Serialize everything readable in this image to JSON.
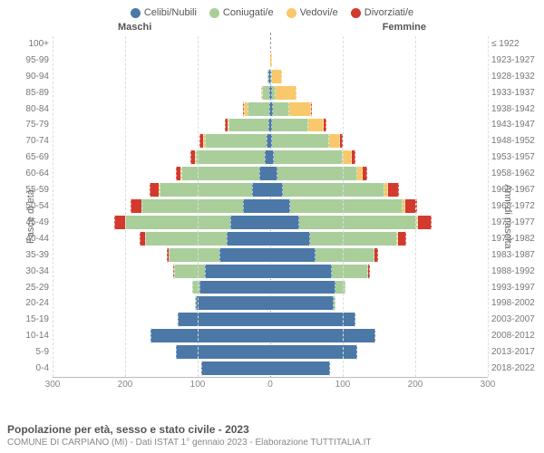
{
  "legend": [
    {
      "label": "Celibi/Nubili",
      "color": "#4b78a6"
    },
    {
      "label": "Coniugati/e",
      "color": "#a9ce9a"
    },
    {
      "label": "Vedovi/e",
      "color": "#f9c86b"
    },
    {
      "label": "Divorziati/e",
      "color": "#d23a2e"
    }
  ],
  "gender": {
    "male": "Maschi",
    "female": "Femmine"
  },
  "axes": {
    "left_title": "Fasce di età",
    "right_title": "Anni di nascita",
    "x_ticks_left": [
      300,
      200,
      100,
      0
    ],
    "x_ticks_right": [
      100,
      200,
      300
    ],
    "x_max": 300
  },
  "colors": {
    "single": "#4b78a6",
    "married": "#a9ce9a",
    "widowed": "#f9c86b",
    "divorced": "#d23a2e",
    "grid": "#dddddd",
    "center": "#999999",
    "text": "#777777",
    "bg": "#ffffff"
  },
  "footer": {
    "title": "Popolazione per età, sesso e stato civile - 2023",
    "subtitle": "COMUNE DI CARPIANO (MI) - Dati ISTAT 1° gennaio 2023 - Elaborazione TUTTITALIA.IT"
  },
  "rows": [
    {
      "age": "100+",
      "birth": "≤ 1922",
      "m": [
        0,
        0,
        0,
        0
      ],
      "f": [
        0,
        0,
        0,
        0
      ]
    },
    {
      "age": "95-99",
      "birth": "1923-1927",
      "m": [
        0,
        0,
        0,
        0
      ],
      "f": [
        0,
        0,
        3,
        0
      ]
    },
    {
      "age": "90-94",
      "birth": "1928-1932",
      "m": [
        2,
        2,
        0,
        0
      ],
      "f": [
        1,
        1,
        14,
        0
      ]
    },
    {
      "age": "85-89",
      "birth": "1933-1937",
      "m": [
        1,
        10,
        2,
        0
      ],
      "f": [
        2,
        6,
        28,
        0
      ]
    },
    {
      "age": "80-84",
      "birth": "1938-1942",
      "m": [
        1,
        30,
        5,
        1
      ],
      "f": [
        4,
        22,
        30,
        1
      ]
    },
    {
      "age": "75-79",
      "birth": "1943-1947",
      "m": [
        2,
        55,
        2,
        3
      ],
      "f": [
        2,
        50,
        22,
        3
      ]
    },
    {
      "age": "70-74",
      "birth": "1948-1952",
      "m": [
        5,
        85,
        2,
        5
      ],
      "f": [
        3,
        78,
        15,
        4
      ]
    },
    {
      "age": "65-69",
      "birth": "1953-1957",
      "m": [
        8,
        95,
        1,
        6
      ],
      "f": [
        5,
        95,
        12,
        5
      ]
    },
    {
      "age": "60-64",
      "birth": "1958-1962",
      "m": [
        15,
        108,
        1,
        6
      ],
      "f": [
        10,
        110,
        8,
        6
      ]
    },
    {
      "age": "55-59",
      "birth": "1963-1967",
      "m": [
        25,
        128,
        1,
        12
      ],
      "f": [
        18,
        140,
        5,
        14
      ]
    },
    {
      "age": "50-54",
      "birth": "1968-1972",
      "m": [
        38,
        140,
        0,
        14
      ],
      "f": [
        28,
        155,
        3,
        16
      ]
    },
    {
      "age": "45-49",
      "birth": "1973-1977",
      "m": [
        55,
        145,
        0,
        15
      ],
      "f": [
        40,
        162,
        2,
        18
      ]
    },
    {
      "age": "40-44",
      "birth": "1978-1982",
      "m": [
        60,
        112,
        0,
        8
      ],
      "f": [
        55,
        120,
        1,
        12
      ]
    },
    {
      "age": "35-39",
      "birth": "1983-1987",
      "m": [
        70,
        70,
        0,
        3
      ],
      "f": [
        62,
        82,
        0,
        5
      ]
    },
    {
      "age": "30-34",
      "birth": "1988-1992",
      "m": [
        90,
        42,
        0,
        1
      ],
      "f": [
        85,
        50,
        0,
        2
      ]
    },
    {
      "age": "25-29",
      "birth": "1993-1997",
      "m": [
        98,
        10,
        0,
        0
      ],
      "f": [
        90,
        14,
        0,
        0
      ]
    },
    {
      "age": "20-24",
      "birth": "1998-2002",
      "m": [
        102,
        1,
        0,
        0
      ],
      "f": [
        88,
        2,
        0,
        0
      ]
    },
    {
      "age": "15-19",
      "birth": "2003-2007",
      "m": [
        128,
        0,
        0,
        0
      ],
      "f": [
        118,
        0,
        0,
        0
      ]
    },
    {
      "age": "10-14",
      "birth": "2008-2012",
      "m": [
        165,
        0,
        0,
        0
      ],
      "f": [
        145,
        0,
        0,
        0
      ]
    },
    {
      "age": "5-9",
      "birth": "2013-2017",
      "m": [
        130,
        0,
        0,
        0
      ],
      "f": [
        120,
        0,
        0,
        0
      ]
    },
    {
      "age": "0-4",
      "birth": "2018-2022",
      "m": [
        95,
        0,
        0,
        0
      ],
      "f": [
        82,
        0,
        0,
        0
      ]
    }
  ]
}
